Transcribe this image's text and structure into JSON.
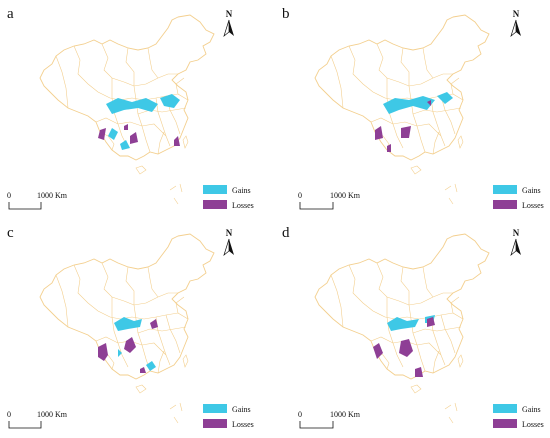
{
  "colors": {
    "boundary": "#f3cf8e",
    "gains": "#3ec8e6",
    "losses": "#8e3f95",
    "text": "#111111"
  },
  "legend": {
    "gains_label": "Gains",
    "losses_label": "Losses"
  },
  "scale_bar": {
    "start_label": "0",
    "end_label": "1000 Km"
  },
  "north_arrow": {
    "label": "N",
    "icon": "north-arrow-icon"
  },
  "panels": [
    {
      "label": "a"
    },
    {
      "label": "b"
    },
    {
      "label": "c"
    },
    {
      "label": "d"
    }
  ]
}
